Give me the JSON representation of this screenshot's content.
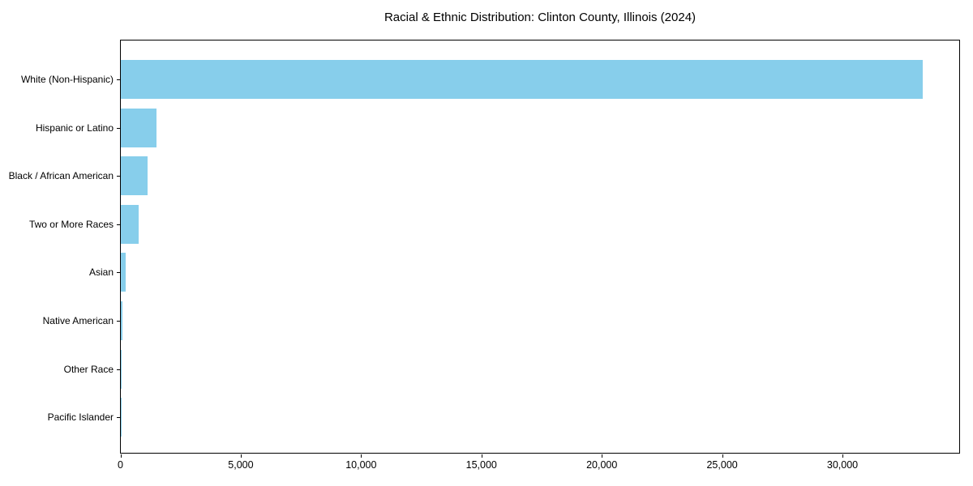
{
  "chart_data": {
    "type": "bar",
    "orientation": "horizontal",
    "title": "Racial & Ethnic Distribution: Clinton County, Illinois (2024)",
    "categories": [
      "White (Non-Hispanic)",
      "Hispanic or Latino",
      "Black / African American",
      "Two or More Races",
      "Asian",
      "Native American",
      "Other Race",
      "Pacific Islander"
    ],
    "values": [
      33300,
      1470,
      1100,
      750,
      200,
      60,
      30,
      10
    ],
    "xlabel": "",
    "ylabel": "",
    "xlim": [
      0,
      34900
    ],
    "x_ticks": [
      0,
      5000,
      10000,
      15000,
      20000,
      25000,
      30000
    ],
    "x_tick_labels": [
      "0",
      "5,000",
      "10,000",
      "15,000",
      "20,000",
      "25,000",
      "30,000"
    ],
    "bar_color": "#87CEEB",
    "axis_color": "#000000",
    "background_color": "#ffffff",
    "grid": false,
    "legend": null
  }
}
